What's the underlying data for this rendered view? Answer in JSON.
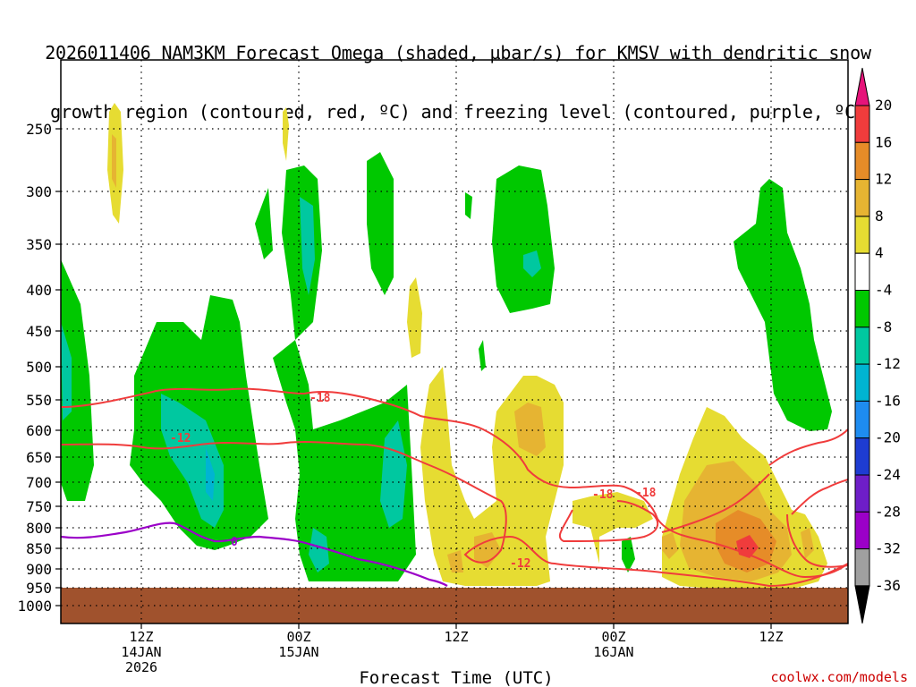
{
  "title_line1": "2026011406 NAM3KM Forecast Omega (shaded, µbar/s) for KMSV with dendritic snow",
  "title_line2": "growth region (contoured, red, ºC) and freezing level (contoured, purple, ºC)",
  "credit": "coolwx.com/models",
  "colors": {
    "green": "#00c800",
    "teal": "#00c8a0",
    "cyan": "#00b4d2",
    "yellow": "#e6dc32",
    "gold": "#e6b432",
    "orange": "#e68c28",
    "red": "#f03c3c",
    "terrain": "#a0522d",
    "purple": "#9b00c8"
  },
  "chart_data": {
    "type": "heatmap",
    "title": "2026011406 NAM3KM Forecast Omega (shaded, µbar/s) for KMSV with dendritic snow growth region (contoured, red, ºC) and freezing level (contoured, purple, ºC)",
    "xlabel": "Forecast Time (UTC)",
    "ylabel": "",
    "y_ticks": [
      "250",
      "300",
      "350",
      "400",
      "450",
      "500",
      "550",
      "600",
      "650",
      "700",
      "750",
      "800",
      "850",
      "900",
      "950",
      "1000"
    ],
    "x_ticks": [
      {
        "hour": "12Z",
        "day": "14JAN",
        "year": "2026"
      },
      {
        "hour": "00Z",
        "day": "15JAN",
        "year": ""
      },
      {
        "hour": "12Z",
        "day": "",
        "year": ""
      },
      {
        "hour": "00Z",
        "day": "16JAN",
        "year": ""
      },
      {
        "hour": "12Z",
        "day": "",
        "year": ""
      }
    ],
    "colorbar": {
      "labels": [
        "20",
        "16",
        "12",
        "8",
        "4",
        "−4",
        "−8",
        "−12",
        "−16",
        "−20",
        "−24",
        "−28",
        "−32",
        "−36"
      ],
      "colors": [
        "#f03c3c",
        "#e68c28",
        "#e6b432",
        "#e6dc32",
        "#ffffff",
        "#00c800",
        "#00c8a0",
        "#00b4d2",
        "#1e8cf0",
        "#1e3cd2",
        "#6e1ec8",
        "#9b00c8",
        "#a0a0a0"
      ],
      "top_color": "#e6147a",
      "bottom_color": "#000000"
    },
    "contour_labels": [
      "-18",
      "-12",
      "-18",
      "-18",
      "-12",
      "0"
    ],
    "grid": true
  }
}
